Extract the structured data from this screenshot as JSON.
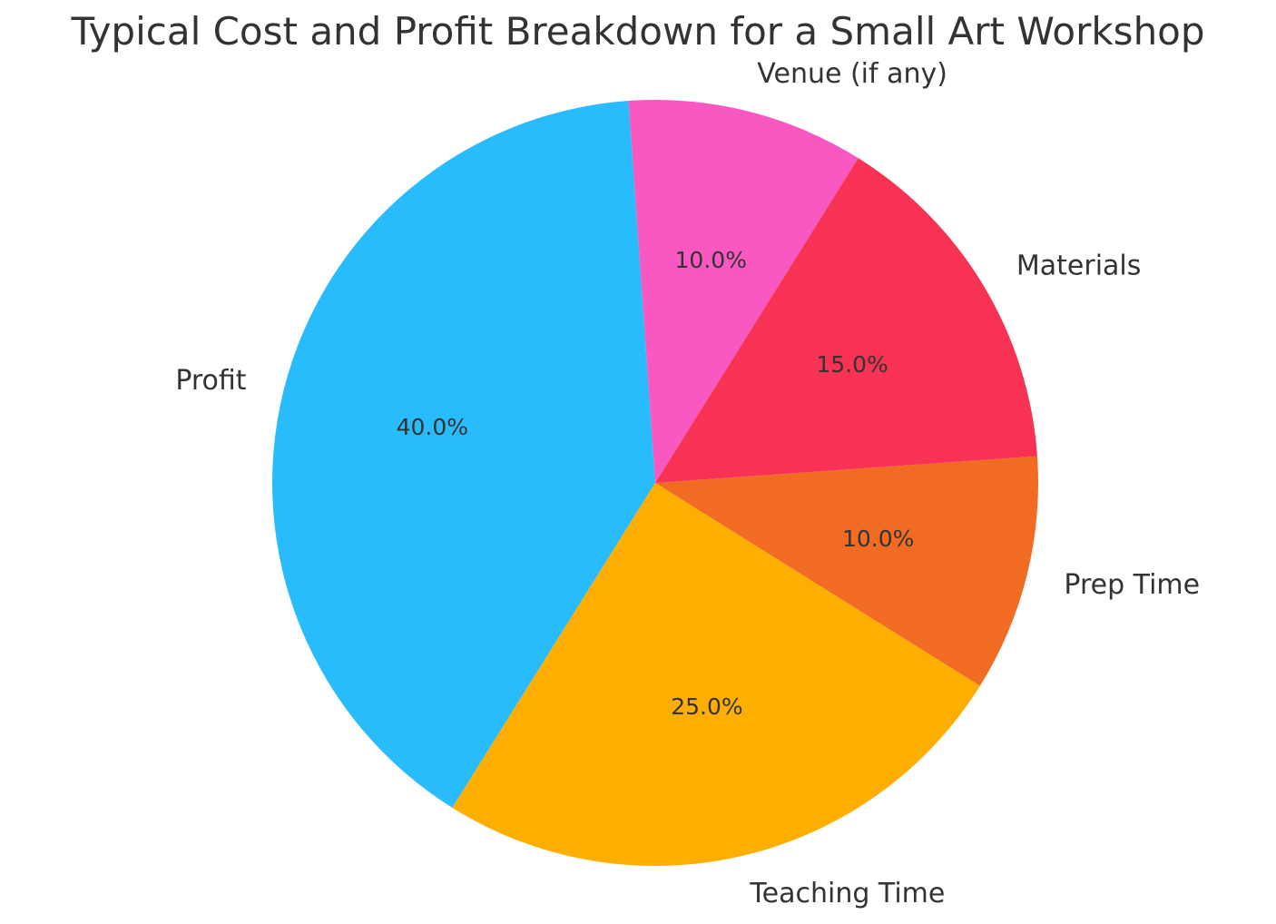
{
  "chart_data": {
    "type": "pie",
    "title": "Typical Cost and Profit Breakdown for a Small Art Workshop",
    "categories": [
      "Profit",
      "Teaching Time",
      "Prep Time",
      "Materials",
      "Venue (if any)"
    ],
    "values": [
      40,
      25,
      10,
      15,
      10
    ],
    "percent_labels": [
      "40.0%",
      "25.0%",
      "10.0%",
      "15.0%",
      "10.0%"
    ],
    "colors": [
      "#29BCFC",
      "#FEAE00",
      "#F26B22",
      "#F73254",
      "#F958C1"
    ],
    "start_angle_deg": 94,
    "direction": "counterclockwise",
    "legend": "none"
  }
}
